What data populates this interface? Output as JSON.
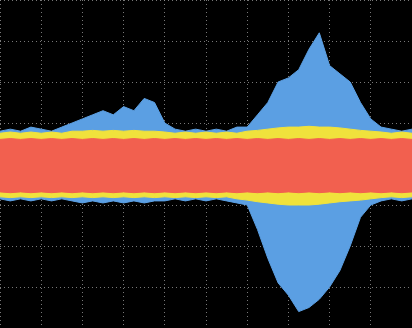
{
  "chart_data": {
    "type": "line",
    "x": [
      -5,
      -4.75,
      -4.5,
      -4.25,
      -4,
      -3.75,
      -3.5,
      -3.25,
      -3,
      -2.75,
      -2.5,
      -2.25,
      -2,
      -1.75,
      -1.5,
      -1.25,
      -1,
      -0.75,
      -0.5,
      -0.25,
      0,
      0.25,
      0.5,
      0.75,
      1,
      1.25,
      1.5,
      1.75,
      2,
      2.25,
      2.5,
      2.75,
      3,
      3.25,
      3.5,
      3.75,
      4,
      4.25,
      4.5,
      4.75,
      5
    ],
    "series": [
      {
        "color": "#f2604f",
        "values": [
          0.6,
          0.62,
          0.6,
          0.62,
          0.6,
          0.62,
          0.6,
          0.62,
          0.6,
          0.62,
          0.6,
          0.62,
          0.6,
          0.62,
          0.6,
          0.62,
          0.6,
          0.62,
          0.6,
          0.62,
          0.6,
          0.62,
          0.6,
          0.62,
          0.6,
          0.62,
          0.6,
          0.62,
          0.6,
          0.62,
          0.6,
          0.62,
          0.6,
          0.62,
          0.6,
          0.62,
          0.6,
          0.62,
          0.6,
          0.62,
          0.6
        ]
      },
      {
        "color": "#f2604f",
        "values": [
          -0.68,
          -0.7,
          -0.68,
          -0.7,
          -0.68,
          -0.7,
          -0.68,
          -0.7,
          -0.68,
          -0.7,
          -0.68,
          -0.7,
          -0.68,
          -0.7,
          -0.68,
          -0.7,
          -0.68,
          -0.7,
          -0.68,
          -0.7,
          -0.68,
          -0.7,
          -0.68,
          -0.7,
          -0.68,
          -0.7,
          -0.68,
          -0.7,
          -0.68,
          -0.7,
          -0.68,
          -0.7,
          -0.68,
          -0.7,
          -0.68,
          -0.7,
          -0.68,
          -0.7,
          -0.68,
          -0.7,
          -0.68
        ]
      },
      {
        "color": "#f0e23c",
        "values": [
          0.75,
          0.78,
          0.75,
          0.78,
          0.75,
          0.78,
          0.75,
          0.8,
          0.8,
          0.82,
          0.8,
          0.82,
          0.8,
          0.82,
          0.8,
          0.8,
          0.78,
          0.75,
          0.78,
          0.75,
          0.78,
          0.75,
          0.78,
          0.75,
          0.8,
          0.82,
          0.85,
          0.88,
          0.9,
          0.9,
          0.92,
          0.9,
          0.9,
          0.88,
          0.85,
          0.82,
          0.8,
          0.78,
          0.75,
          0.78,
          0.75
        ]
      },
      {
        "color": "#f0e23c",
        "values": [
          -0.8,
          -0.82,
          -0.8,
          -0.82,
          -0.8,
          -0.82,
          -0.8,
          -0.82,
          -0.8,
          -0.82,
          -0.8,
          -0.82,
          -0.8,
          -0.82,
          -0.8,
          -0.82,
          -0.8,
          -0.82,
          -0.8,
          -0.82,
          -0.8,
          -0.82,
          -0.8,
          -0.85,
          -0.88,
          -0.92,
          -0.95,
          -0.98,
          -1.0,
          -1.0,
          -1.0,
          -0.98,
          -0.95,
          -0.92,
          -0.9,
          -0.88,
          -0.85,
          -0.82,
          -0.8,
          -0.82,
          -0.8
        ]
      },
      {
        "color": "#5b9fe3",
        "values": [
          0.8,
          0.85,
          0.8,
          0.9,
          0.85,
          0.8,
          0.9,
          1.0,
          1.1,
          1.2,
          1.3,
          1.2,
          1.4,
          1.3,
          1.6,
          1.5,
          1.0,
          0.85,
          0.8,
          0.85,
          0.8,
          0.85,
          0.8,
          0.9,
          0.9,
          1.2,
          1.5,
          2.0,
          2.1,
          2.3,
          2.8,
          3.2,
          2.4,
          2.2,
          2.0,
          1.5,
          1.1,
          0.9,
          0.85,
          0.8,
          0.85
        ]
      },
      {
        "color": "#5b9fe3",
        "values": [
          -0.85,
          -0.9,
          -0.85,
          -0.9,
          -0.85,
          -0.9,
          -0.85,
          -0.9,
          -0.95,
          -0.9,
          -0.95,
          -0.9,
          -0.95,
          -0.9,
          -0.95,
          -0.9,
          -0.9,
          -0.85,
          -0.9,
          -0.85,
          -0.9,
          -0.85,
          -0.9,
          -0.95,
          -1.0,
          -1.6,
          -2.3,
          -2.9,
          -3.2,
          -3.6,
          -3.5,
          -3.3,
          -3.0,
          -2.6,
          -2.0,
          -1.3,
          -1.0,
          -0.9,
          -0.85,
          -0.9,
          -0.85
        ]
      }
    ],
    "xlim": [
      -5,
      5
    ],
    "xticks": [
      -5,
      -4,
      -3,
      -2,
      -1,
      0,
      1,
      2,
      3,
      4,
      5
    ],
    "ylim": [
      -4,
      4
    ],
    "yticks": [
      -4,
      -3,
      -2,
      -1,
      0,
      1,
      2,
      3,
      4
    ],
    "grid": true,
    "tick_labels": false
  }
}
